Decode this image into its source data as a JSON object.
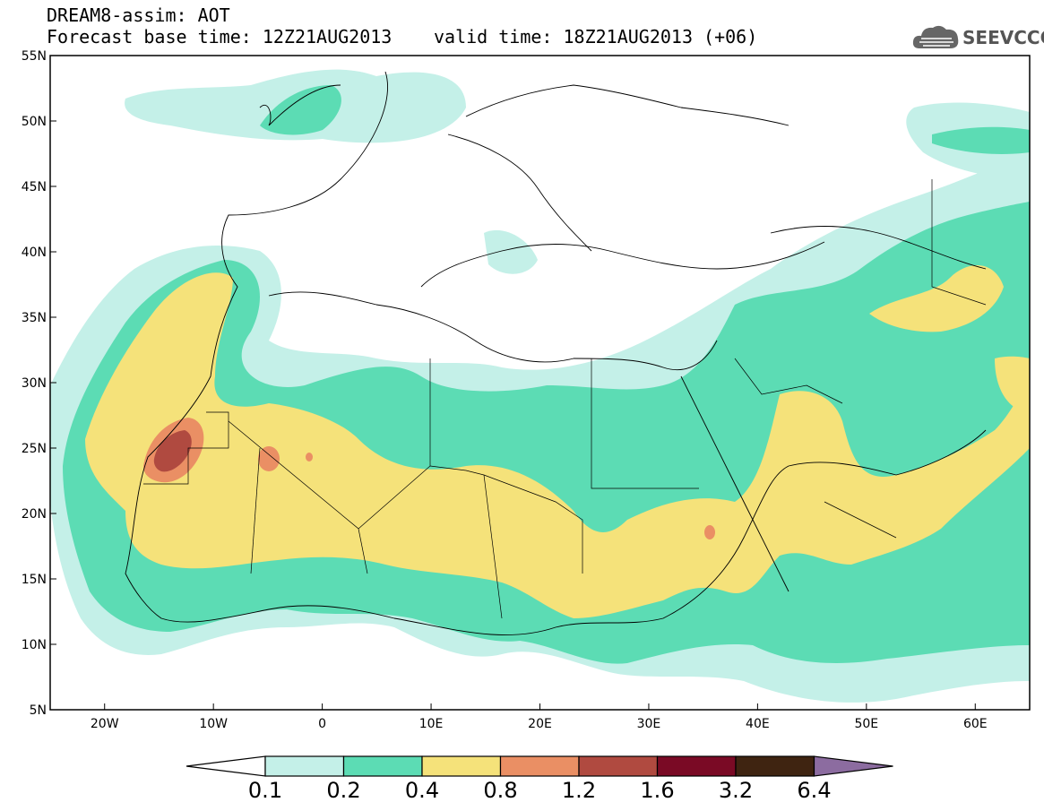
{
  "header": {
    "title": "DREAM8-assim: AOT",
    "base_time": "Forecast base time: 12Z21AUG2013",
    "valid_time": "valid time: 18Z21AUG2013 (+06)"
  },
  "logo": {
    "text": "SEEVCCC",
    "icon": "cloud-icon"
  },
  "map": {
    "lon_range": [
      -25,
      65
    ],
    "lat_range": [
      5,
      55
    ],
    "x_ticks": [
      {
        "value": -20,
        "label": "20W"
      },
      {
        "value": -10,
        "label": "10W"
      },
      {
        "value": 0,
        "label": "0"
      },
      {
        "value": 10,
        "label": "10E"
      },
      {
        "value": 20,
        "label": "20E"
      },
      {
        "value": 30,
        "label": "30E"
      },
      {
        "value": 40,
        "label": "40E"
      },
      {
        "value": 50,
        "label": "50E"
      },
      {
        "value": 60,
        "label": "60E"
      }
    ],
    "y_ticks": [
      {
        "value": 55,
        "label": "55N"
      },
      {
        "value": 50,
        "label": "50N"
      },
      {
        "value": 45,
        "label": "45N"
      },
      {
        "value": 40,
        "label": "40N"
      },
      {
        "value": 35,
        "label": "35N"
      },
      {
        "value": 30,
        "label": "30N"
      },
      {
        "value": 25,
        "label": "25N"
      },
      {
        "value": 20,
        "label": "20N"
      },
      {
        "value": 15,
        "label": "15N"
      },
      {
        "value": 10,
        "label": "10N"
      },
      {
        "value": 5,
        "label": "5N"
      }
    ]
  },
  "colorbar": {
    "colors": [
      "#c4f0e8",
      "#5cdcb4",
      "#f5e27a",
      "#ea8f64",
      "#b04a40",
      "#7a0a25",
      "#3f2411",
      "#8c6ca0"
    ],
    "labels": [
      "0.1",
      "0.2",
      "0.4",
      "0.8",
      "1.2",
      "1.6",
      "3.2",
      "6.4"
    ]
  }
}
